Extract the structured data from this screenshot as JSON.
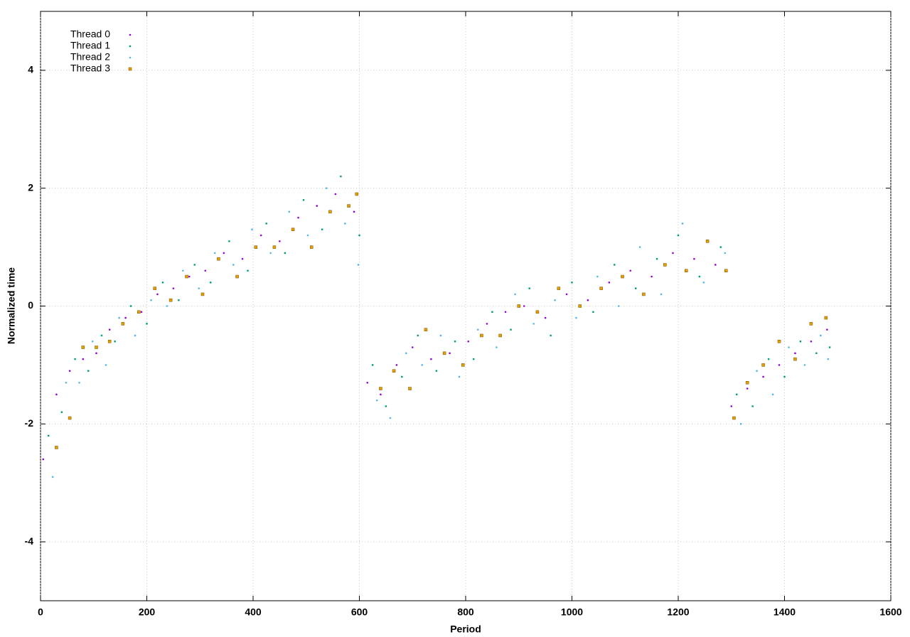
{
  "chart_data": {
    "type": "scatter",
    "xlabel": "Period",
    "ylabel": "Normalized time",
    "xlim": [
      0,
      1600
    ],
    "ylim": [
      -5,
      5
    ],
    "xticks": [
      0,
      200,
      400,
      600,
      800,
      1000,
      1200,
      1400,
      1600
    ],
    "yticks": [
      -4,
      -2,
      0,
      2,
      4
    ],
    "grid": true,
    "legend": "top-left",
    "series": [
      {
        "name": "Thread 0",
        "color": "#9400d3",
        "marker": "dot",
        "x": [
          5,
          30,
          55,
          80,
          105,
          130,
          160,
          190,
          220,
          250,
          280,
          310,
          345,
          380,
          415,
          450,
          485,
          520,
          555,
          590,
          615,
          640,
          670,
          700,
          735,
          770,
          805,
          840,
          875,
          910,
          950,
          990,
          1030,
          1070,
          1110,
          1150,
          1190,
          1230,
          1270,
          1300,
          1330,
          1360,
          1390,
          1420,
          1450,
          1480
        ],
        "values": [
          -2.6,
          -1.5,
          -1.1,
          -0.9,
          -0.8,
          -0.4,
          -0.2,
          -0.1,
          0.2,
          0.3,
          0.5,
          0.6,
          0.9,
          0.8,
          1.2,
          1.1,
          1.5,
          1.7,
          1.9,
          1.6,
          -1.3,
          -1.5,
          -1.0,
          -0.7,
          -0.9,
          -0.8,
          -0.6,
          -0.3,
          -0.1,
          0.0,
          -0.2,
          0.2,
          0.1,
          0.4,
          0.6,
          0.5,
          0.9,
          0.8,
          0.7,
          -1.7,
          -1.4,
          -1.2,
          -1.0,
          -0.8,
          -0.6,
          -0.4
        ]
      },
      {
        "name": "Thread 1",
        "color": "#009e73",
        "marker": "small-square",
        "x": [
          15,
          40,
          65,
          90,
          115,
          140,
          170,
          200,
          230,
          260,
          290,
          320,
          355,
          390,
          425,
          460,
          495,
          530,
          565,
          600,
          625,
          650,
          680,
          710,
          745,
          780,
          815,
          850,
          885,
          920,
          960,
          1000,
          1040,
          1080,
          1120,
          1160,
          1200,
          1240,
          1280,
          1310,
          1340,
          1370,
          1400,
          1430,
          1460,
          1485
        ],
        "values": [
          -2.2,
          -1.8,
          -0.9,
          -1.1,
          -0.5,
          -0.6,
          0.0,
          -0.3,
          0.4,
          0.1,
          0.7,
          0.4,
          1.1,
          0.6,
          1.4,
          0.9,
          1.8,
          1.3,
          2.2,
          1.2,
          -1.0,
          -1.7,
          -1.2,
          -0.5,
          -1.1,
          -0.6,
          -0.9,
          -0.1,
          -0.4,
          0.3,
          -0.5,
          0.4,
          -0.1,
          0.7,
          0.3,
          0.8,
          1.2,
          0.5,
          1.0,
          -1.5,
          -1.7,
          -0.9,
          -1.2,
          -0.6,
          -0.8,
          -0.7
        ]
      },
      {
        "name": "Thread 2",
        "color": "#56b4e9",
        "marker": "dot",
        "x": [
          23,
          48,
          73,
          98,
          123,
          148,
          178,
          208,
          238,
          268,
          298,
          328,
          363,
          398,
          433,
          468,
          503,
          538,
          573,
          598,
          633,
          658,
          688,
          718,
          753,
          788,
          823,
          858,
          893,
          928,
          968,
          1008,
          1048,
          1088,
          1128,
          1168,
          1208,
          1248,
          1288,
          1318,
          1348,
          1378,
          1408,
          1438,
          1468,
          1482
        ],
        "values": [
          -2.9,
          -1.3,
          -1.3,
          -0.6,
          -1.0,
          -0.2,
          -0.5,
          0.1,
          0.0,
          0.6,
          0.3,
          0.9,
          0.7,
          1.3,
          0.9,
          1.6,
          1.2,
          2.0,
          1.4,
          0.7,
          -1.6,
          -1.9,
          -0.8,
          -1.0,
          -0.5,
          -1.2,
          -0.4,
          -0.7,
          0.2,
          -0.3,
          0.1,
          -0.2,
          0.5,
          0.0,
          1.0,
          0.2,
          1.4,
          0.4,
          0.9,
          -2.0,
          -1.1,
          -1.5,
          -0.7,
          -1.0,
          -0.5,
          -0.9
        ]
      },
      {
        "name": "Thread 3",
        "color": "#e69f00",
        "marker": "square",
        "x": [
          30,
          55,
          80,
          105,
          130,
          155,
          185,
          215,
          245,
          275,
          305,
          335,
          370,
          405,
          440,
          475,
          510,
          545,
          580,
          595,
          640,
          665,
          695,
          725,
          760,
          795,
          830,
          865,
          900,
          935,
          975,
          1015,
          1055,
          1095,
          1135,
          1175,
          1215,
          1255,
          1290,
          1305,
          1330,
          1360,
          1390,
          1420,
          1450,
          1478
        ],
        "values": [
          -2.4,
          -1.9,
          -0.7,
          -0.7,
          -0.6,
          -0.3,
          -0.1,
          0.3,
          0.1,
          0.5,
          0.2,
          0.8,
          0.5,
          1.0,
          1.0,
          1.3,
          1.0,
          1.6,
          1.7,
          1.9,
          -1.4,
          -1.1,
          -1.4,
          -0.4,
          -0.8,
          -1.0,
          -0.5,
          -0.5,
          0.0,
          -0.1,
          0.3,
          0.0,
          0.3,
          0.5,
          0.2,
          0.7,
          0.6,
          1.1,
          0.6,
          -1.9,
          -1.3,
          -1.0,
          -0.6,
          -0.9,
          -0.3,
          -0.2
        ]
      }
    ]
  }
}
